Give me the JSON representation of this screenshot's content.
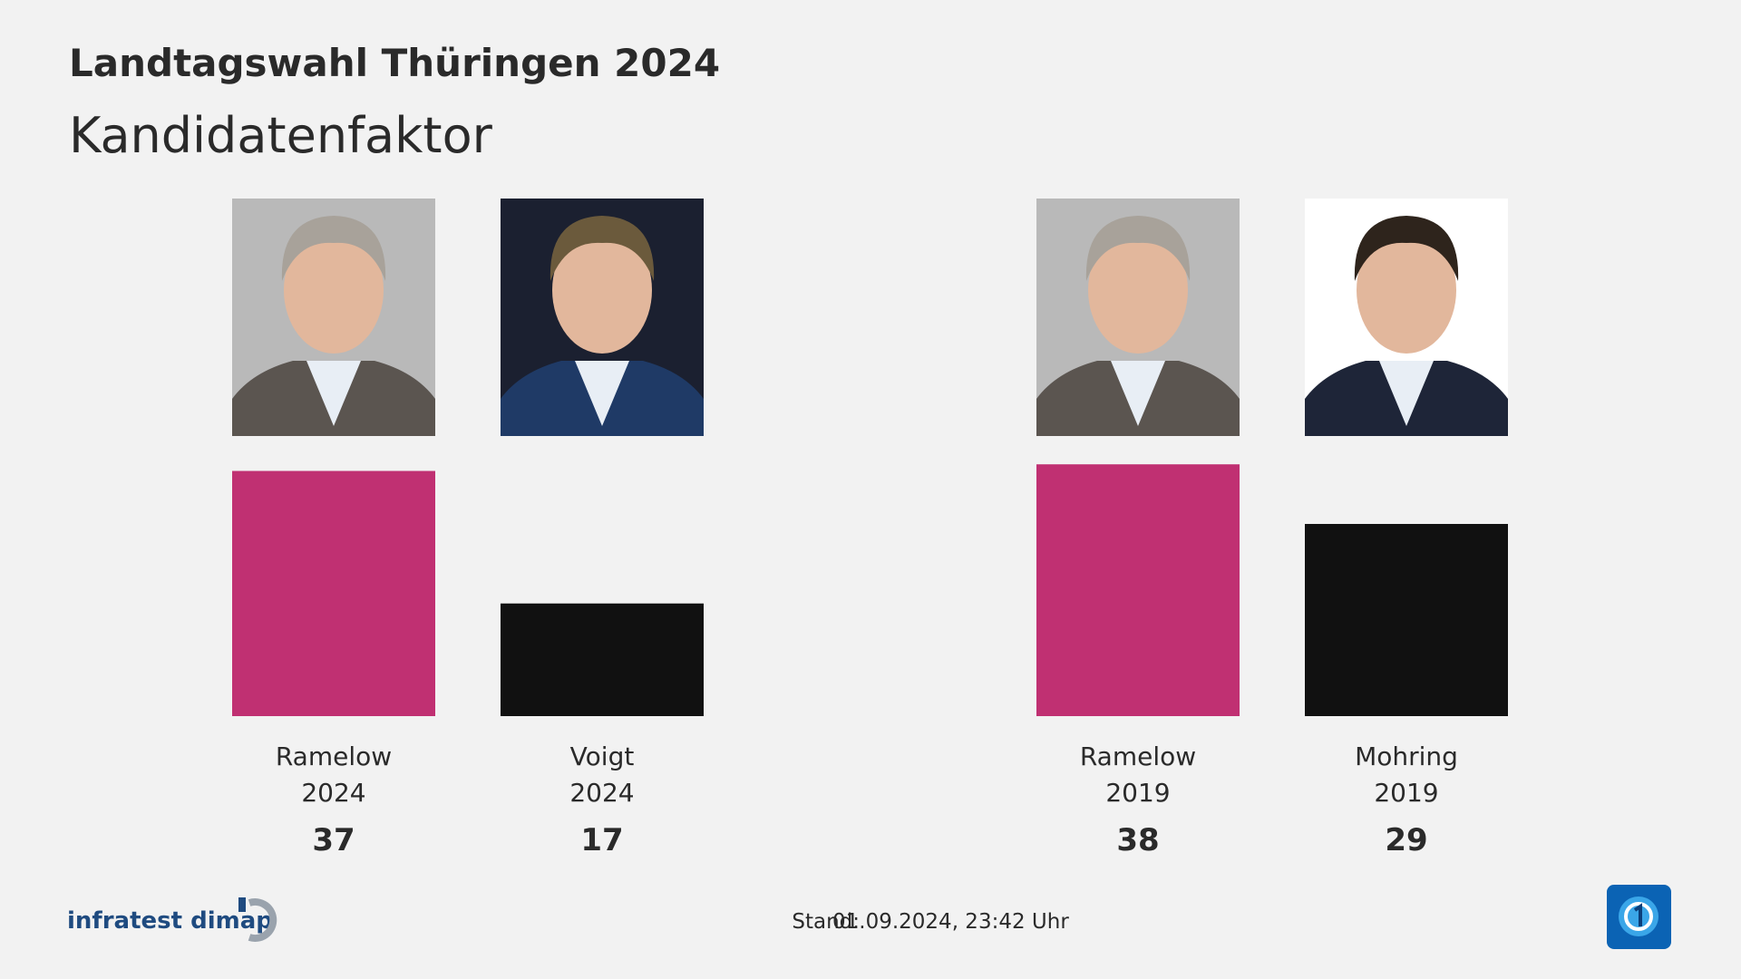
{
  "chart_data": {
    "type": "bar",
    "title": "Landtagswahl Thüringen 2024",
    "subtitle": "Kandidatenfaktor",
    "categories": [
      "Ramelow",
      "Voigt",
      "Ramelow",
      "Mohring"
    ],
    "category_sublabels": [
      "2024",
      "2024",
      "2019",
      "2019"
    ],
    "values": [
      37,
      17,
      38,
      29
    ],
    "colors": [
      "#c03072",
      "#111111",
      "#c03072",
      "#111111"
    ],
    "source": "infratest dimap",
    "footer_label": "Stand:",
    "footer_date": "01.09.2024, 23:42 Uhr"
  }
}
